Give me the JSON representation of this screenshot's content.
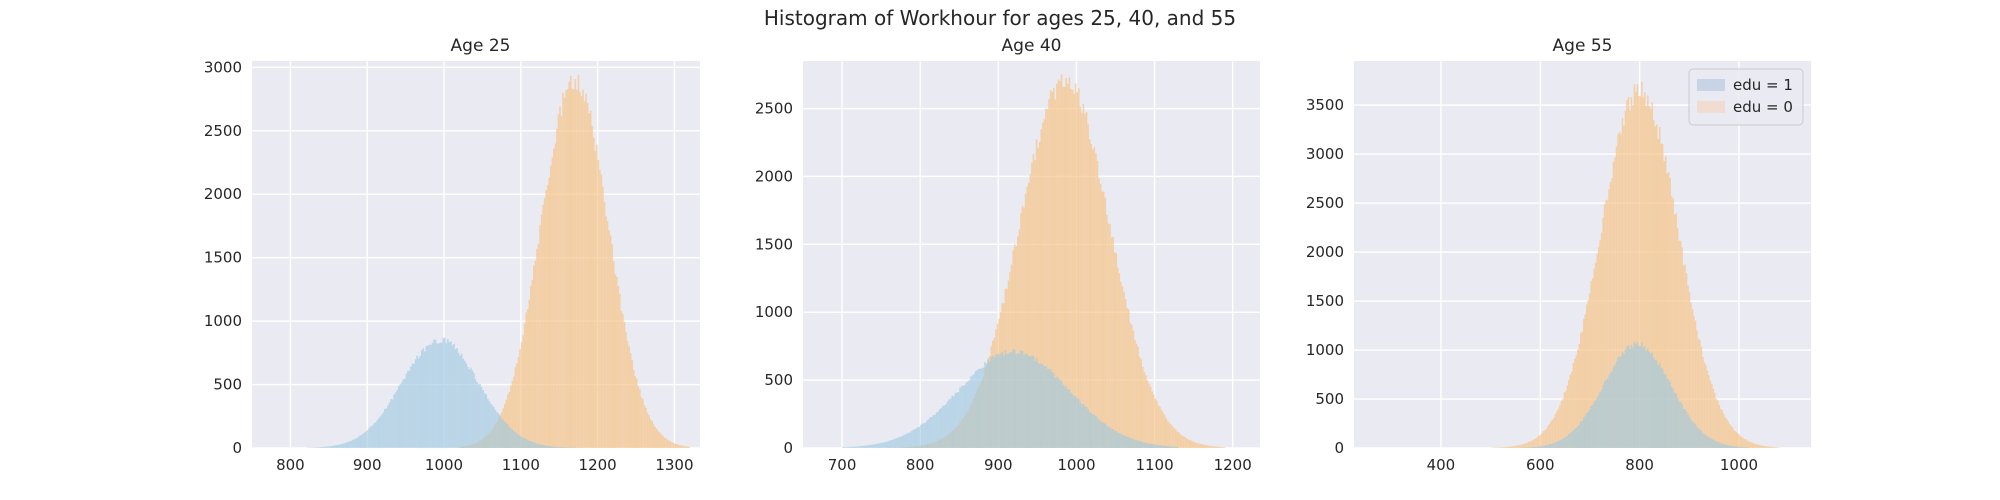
{
  "figure": {
    "suptitle": "Histogram of Workhour for ages 25, 40, and 55",
    "colors": {
      "background": "#eaeaf2",
      "grid": "#ffffff",
      "edu1": "#9ecae1",
      "edu0": "#f5c58c",
      "overlap": "#b8b5a0"
    }
  },
  "chart_data": [
    {
      "type": "bar",
      "title": "Age 25",
      "xlabel": "",
      "ylabel": "",
      "xlim": [
        750,
        1345
      ],
      "ylim": [
        0,
        3050
      ],
      "xticks": [
        800,
        900,
        1000,
        1100,
        1200,
        1300
      ],
      "yticks": [
        0,
        500,
        1000,
        1500,
        2000,
        2500,
        3000
      ],
      "grid": true,
      "legend": null,
      "series": [
        {
          "key": "edu1",
          "distribution": "normal",
          "mean": 995,
          "sd": 50,
          "peak_count": 850,
          "range": [
            820,
            1180
          ]
        },
        {
          "key": "edu0",
          "distribution": "normal",
          "mean": 1170,
          "sd": 44,
          "peak_count": 2900,
          "range": [
            1020,
            1320
          ]
        }
      ],
      "bin_width": 2
    },
    {
      "type": "bar",
      "title": "Age 40",
      "xlabel": "",
      "ylabel": "",
      "xlim": [
        650,
        1235
      ],
      "ylim": [
        0,
        2850
      ],
      "xticks": [
        700,
        800,
        900,
        1000,
        1100,
        1200
      ],
      "yticks": [
        0,
        500,
        1000,
        1500,
        2000,
        2500
      ],
      "grid": true,
      "legend": null,
      "series": [
        {
          "key": "edu1",
          "distribution": "normal",
          "mean": 920,
          "sd": 70,
          "peak_count": 710,
          "range": [
            700,
            1130
          ]
        },
        {
          "key": "edu0",
          "distribution": "normal",
          "mean": 985,
          "sd": 58,
          "peak_count": 2700,
          "range": [
            760,
            1190
          ]
        }
      ],
      "bin_width": 2
    },
    {
      "type": "bar",
      "title": "Age 55",
      "xlabel": "",
      "ylabel": "",
      "xlim": [
        225,
        1145
      ],
      "ylim": [
        0,
        3950
      ],
      "xticks": [
        400,
        600,
        800,
        1000
      ],
      "yticks": [
        0,
        500,
        1000,
        1500,
        2000,
        2500,
        3000,
        3500
      ],
      "grid": true,
      "legend": {
        "position": "top-right",
        "entries": [
          {
            "label": "edu = 1",
            "key": "edu1"
          },
          {
            "label": "edu = 0",
            "key": "edu0"
          }
        ]
      },
      "series": [
        {
          "key": "edu1",
          "distribution": "normal",
          "mean": 795,
          "sd": 68,
          "peak_count": 1060,
          "range": [
            560,
            1020
          ]
        },
        {
          "key": "edu0",
          "distribution": "normal",
          "mean": 800,
          "sd": 78,
          "peak_count": 3650,
          "range": [
            500,
            1080
          ]
        }
      ],
      "bin_width": 3
    }
  ]
}
